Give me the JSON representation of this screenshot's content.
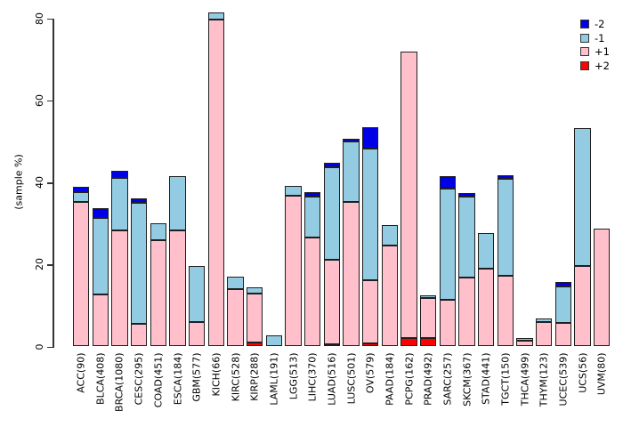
{
  "y_axis": {
    "label": "(sample %)",
    "ticks": [
      "0",
      "20",
      "40",
      "60",
      "80"
    ]
  },
  "legend": [
    {
      "label": "-2",
      "color": "#0000E8"
    },
    {
      "label": "-1",
      "color": "#92CBE2"
    },
    {
      "label": "+1",
      "color": "#FFC0CB"
    },
    {
      "label": "+2",
      "color": "#FF0000"
    }
  ],
  "chart_data": {
    "type": "bar",
    "stacked": true,
    "title": "",
    "xlabel": "",
    "ylabel": "(sample %)",
    "ylim": [
      0,
      83
    ],
    "yticks": [
      0,
      20,
      40,
      60,
      80
    ],
    "grid": false,
    "legend_position": "top-right",
    "stack_order_bottom_to_top": [
      "+2",
      "+1",
      "-1",
      "-2"
    ],
    "categories": [
      "ACC(90)",
      "BLCA(408)",
      "BRCA(1080)",
      "CESC(295)",
      "COAD(451)",
      "ESCA(184)",
      "GBM(577)",
      "KICH(66)",
      "KIRC(528)",
      "KIRP(288)",
      "LAML(191)",
      "LGG(513)",
      "LIHC(370)",
      "LUAD(516)",
      "LUSC(501)",
      "OV(579)",
      "PAAD(184)",
      "PCPG(162)",
      "PRAD(492)",
      "SARC(257)",
      "SKCM(367)",
      "STAD(441)",
      "TGCT(150)",
      "THCA(499)",
      "THYM(123)",
      "UCEC(539)",
      "UCS(56)",
      "UVM(80)"
    ],
    "series": [
      {
        "name": "+2",
        "color": "#FF0000",
        "values": [
          0,
          0,
          0,
          0,
          0,
          0,
          0,
          0,
          0,
          0.9,
          0,
          0,
          0,
          0.5,
          0,
          0.7,
          0,
          2.0,
          2.1,
          0,
          0,
          0,
          0,
          0,
          0,
          0,
          0,
          0
        ]
      },
      {
        "name": "+1",
        "color": "#FFC0CB",
        "values": [
          35.2,
          12.7,
          28.4,
          5.5,
          25.9,
          28.2,
          6.0,
          79.7,
          14.0,
          12.0,
          0,
          36.7,
          26.6,
          20.6,
          35.3,
          15.5,
          24.5,
          69.8,
          9.7,
          11.4,
          16.9,
          19.0,
          17.2,
          1.4,
          5.9,
          5.7,
          19.6,
          28.7
        ]
      },
      {
        "name": "-1",
        "color": "#92CBE2",
        "values": [
          2.5,
          18.6,
          12.7,
          29.5,
          4.1,
          13.3,
          13.6,
          1.7,
          3.0,
          1.6,
          2.8,
          2.4,
          9.9,
          22.6,
          14.7,
          32.0,
          5.1,
          0,
          0.7,
          27.1,
          19.7,
          8.7,
          23.7,
          0.6,
          0.9,
          9.0,
          33.6,
          0
        ]
      },
      {
        "name": "-2",
        "color": "#0000E8",
        "values": [
          1.3,
          2.4,
          1.8,
          1.0,
          0,
          0,
          0,
          0,
          0,
          0,
          0,
          0,
          1.1,
          1.1,
          0.7,
          5.3,
          0,
          0,
          0,
          3.0,
          0.7,
          0,
          0.8,
          0,
          0,
          1.1,
          0,
          0
        ]
      }
    ]
  }
}
